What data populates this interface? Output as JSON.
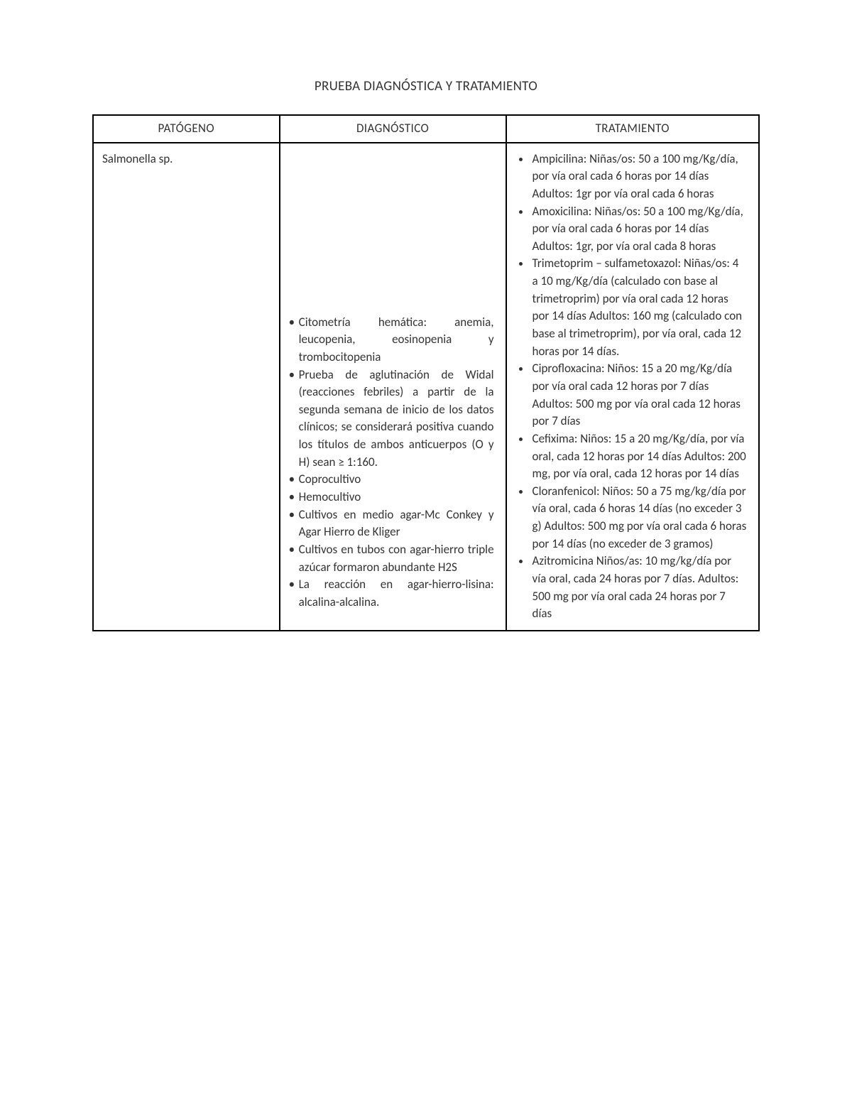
{
  "title": "PRUEBA DIAGNÓSTICA Y TRATAMIENTO",
  "headers": {
    "patogeno": "PATÓGENO",
    "diagnostico": "DIAGNÓSTICO",
    "tratamiento": "TRATAMIENTO"
  },
  "row": {
    "patogeno": "Salmonella sp.",
    "diagnostico": [
      "Citometría hemática: anemia, leucopenia, eosinopenia y trombocitopenia",
      "Prueba de aglutinación de Widal (reacciones febriles) a partir de la segunda semana de inicio de los datos clínicos; se considerará positiva cuando los títulos de ambos anticuerpos (O y H) sean ≥ 1:160.",
      "Coprocultivo",
      "Hemocultivo",
      "Cultivos en medio agar-Mc Conkey y Agar Hierro de Kliger",
      "Cultivos en tubos con agar-hierro triple azúcar formaron abundante H2S",
      "La reacción en agar-hierro-lisina: alcalina-alcalina."
    ],
    "tratamiento": [
      "Ampicilina: Niñas/os: 50 a 100 mg/Kg/día, por vía oral cada 6 horas por 14 días Adultos: 1gr por vía oral cada 6 horas",
      "Amoxicilina: Niñas/os: 50 a 100 mg/Kg/día, por vía oral cada 6 horas por 14 días Adultos: 1gr, por vía oral cada 8 horas",
      "Trimetoprim – sulfametoxazol: Niñas/os: 4 a 10 mg/Kg/día (calculado con base al trimetroprim) por vía oral cada 12 horas por 14 días Adultos: 160 mg (calculado con base al trimetroprim), por vía oral, cada 12 horas por 14 días.",
      "Ciprofloxacina: Niños: 15 a 20 mg/Kg/día por vía oral cada 12 horas por 7 días Adultos: 500 mg por vía oral cada 12 horas por 7 días",
      "Cefixima: Niños: 15 a 20 mg/Kg/día, por vía oral, cada 12 horas por 14 días Adultos: 200 mg, por vía oral, cada 12 horas por 14 días",
      "Cloranfenicol: Niños: 50 a 75 mg/kg/día por vía oral, cada 6 horas 14 días (no exceder 3 g) Adultos: 500 mg por vía oral cada 6 horas por 14 días (no exceder de 3 gramos)",
      "Azitromicina Niños/as: 10 mg/kg/día por vía oral, cada 24 horas por 7 días. Adultos: 500 mg por vía oral cada 24 horas por 7 días"
    ]
  }
}
